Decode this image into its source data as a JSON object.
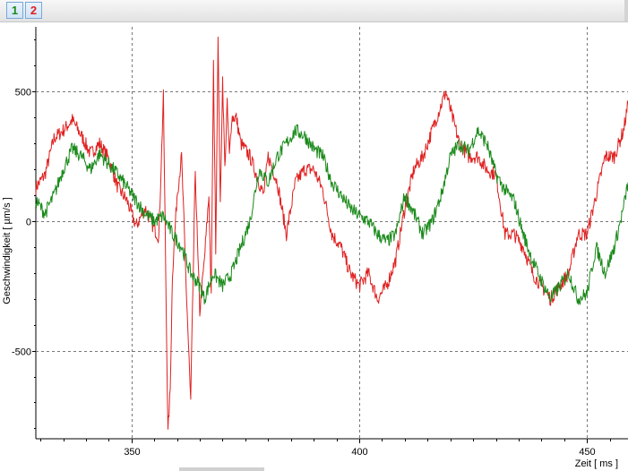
{
  "toolbar": {
    "buttons": [
      {
        "label": "1",
        "color": "#1b8a1b"
      },
      {
        "label": "2",
        "color": "#e02020"
      }
    ]
  },
  "chart_data": {
    "type": "line",
    "xlabel": "Zeit [ ms ]",
    "ylabel": "Geschwindigkeit [ µm/s ]",
    "xlim": [
      329,
      459
    ],
    "ylim": [
      -840,
      750
    ],
    "x_ticks": [
      350,
      400,
      450
    ],
    "y_ticks": [
      -500,
      0,
      500
    ],
    "grid": true,
    "series": [
      {
        "color": "#e02020",
        "x": [
          329,
          331,
          333,
          335,
          337,
          339,
          341,
          343,
          345,
          347,
          349,
          351,
          353,
          355,
          356,
          357,
          358,
          358.5,
          359,
          360,
          361,
          362,
          363,
          364,
          364.5,
          365,
          366,
          367,
          367.5,
          368,
          368.5,
          369,
          369.5,
          370,
          370.5,
          371,
          371.5,
          372,
          373,
          374,
          376,
          378,
          379,
          380,
          382,
          384,
          386,
          388,
          390,
          392,
          394,
          396,
          398,
          400,
          402,
          404,
          406,
          408,
          410,
          412,
          414,
          416,
          418,
          419,
          420,
          422,
          424,
          426,
          428,
          430,
          432,
          434,
          436,
          438,
          440,
          442,
          444,
          446,
          448,
          450,
          452,
          454,
          456,
          458,
          459
        ],
        "y": [
          130,
          180,
          320,
          350,
          390,
          330,
          260,
          300,
          240,
          130,
          80,
          -20,
          50,
          -30,
          -60,
          480,
          -820,
          -650,
          -200,
          100,
          250,
          -250,
          -700,
          200,
          -100,
          -350,
          -150,
          100,
          -300,
          600,
          -100,
          700,
          50,
          550,
          200,
          450,
          250,
          400,
          400,
          300,
          250,
          150,
          100,
          250,
          150,
          -50,
          150,
          200,
          200,
          120,
          -50,
          -100,
          -200,
          -250,
          -200,
          -300,
          -250,
          -150,
          50,
          200,
          250,
          350,
          450,
          500,
          430,
          300,
          250,
          250,
          200,
          180,
          -50,
          -50,
          -100,
          -200,
          -250,
          -300,
          -250,
          -200,
          -50,
          -50,
          100,
          250,
          250,
          350,
          450
        ]
      },
      {
        "color": "#1b8a1b",
        "x": [
          329,
          331,
          333,
          335,
          337,
          339,
          341,
          343,
          345,
          347,
          349,
          351,
          353,
          355,
          357,
          359,
          361,
          363,
          365,
          366,
          368,
          370,
          372,
          374,
          376,
          378,
          380,
          382,
          384,
          386,
          388,
          390,
          392,
          394,
          396,
          398,
          400,
          402,
          404,
          406,
          408,
          410,
          412,
          414,
          416,
          418,
          420,
          422,
          424,
          426,
          428,
          430,
          432,
          434,
          436,
          438,
          440,
          442,
          444,
          446,
          448,
          450,
          452,
          454,
          456,
          458,
          459
        ],
        "y": [
          80,
          30,
          100,
          200,
          280,
          250,
          200,
          260,
          220,
          180,
          130,
          80,
          30,
          0,
          20,
          -50,
          -100,
          -200,
          -250,
          -300,
          -200,
          -250,
          -200,
          -100,
          0,
          200,
          150,
          250,
          300,
          350,
          330,
          280,
          250,
          150,
          100,
          50,
          20,
          0,
          -50,
          -80,
          -50,
          100,
          30,
          -50,
          0,
          100,
          250,
          300,
          270,
          350,
          300,
          180,
          120,
          80,
          -50,
          -150,
          -230,
          -300,
          -250,
          -200,
          -300,
          -280,
          -100,
          -200,
          -100,
          50,
          150
        ]
      }
    ]
  }
}
